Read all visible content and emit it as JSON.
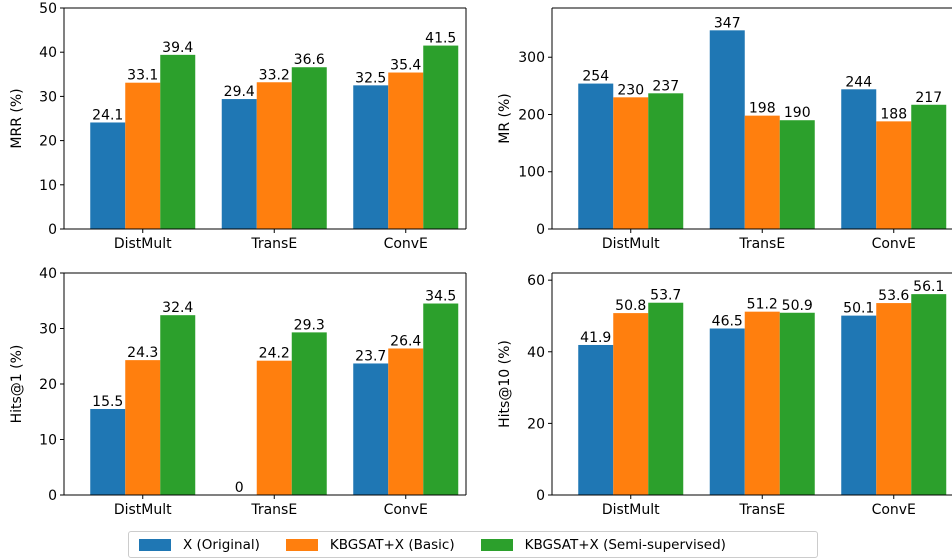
{
  "colors": {
    "original": "#1f77b4",
    "basic": "#ff7f0e",
    "semi": "#2ca02c"
  },
  "legend": {
    "items": [
      {
        "label": "X (Original)",
        "color": "#1f77b4"
      },
      {
        "label": "KBGSAT+X (Basic)",
        "color": "#ff7f0e"
      },
      {
        "label": "KBGSAT+X (Semi-supervised)",
        "color": "#2ca02c"
      }
    ]
  },
  "chart_data": [
    {
      "type": "bar",
      "ylabel": "MRR (%)",
      "categories": [
        "DistMult",
        "TransE",
        "ConvE"
      ],
      "ylim": [
        0,
        50
      ],
      "yticks": [
        0,
        10,
        20,
        30,
        40,
        50
      ],
      "series": [
        {
          "name": "X (Original)",
          "values": [
            24.1,
            29.4,
            32.5
          ],
          "labels": [
            "24.1",
            "29.4",
            "32.5"
          ]
        },
        {
          "name": "KBGSAT+X (Basic)",
          "values": [
            33.1,
            33.2,
            35.4
          ],
          "labels": [
            "33.1",
            "33.2",
            "35.4"
          ]
        },
        {
          "name": "KBGSAT+X (Semi-supervised)",
          "values": [
            39.4,
            36.6,
            41.5
          ],
          "labels": [
            "39.4",
            "36.6",
            "41.5"
          ]
        }
      ]
    },
    {
      "type": "bar",
      "ylabel": "MR (%)",
      "categories": [
        "DistMult",
        "TransE",
        "ConvE"
      ],
      "ylim": [
        0,
        386
      ],
      "yticks": [
        0,
        100,
        200,
        300
      ],
      "series": [
        {
          "name": "X (Original)",
          "values": [
            254,
            347,
            244
          ],
          "labels": [
            "254",
            "347",
            "244"
          ]
        },
        {
          "name": "KBGSAT+X (Basic)",
          "values": [
            230,
            198,
            188
          ],
          "labels": [
            "230",
            "198",
            "188"
          ]
        },
        {
          "name": "KBGSAT+X (Semi-supervised)",
          "values": [
            237,
            190,
            217
          ],
          "labels": [
            "237",
            "190",
            "217"
          ]
        }
      ]
    },
    {
      "type": "bar",
      "ylabel": "Hits@1 (%)",
      "categories": [
        "DistMult",
        "TransE",
        "ConvE"
      ],
      "ylim": [
        0,
        40
      ],
      "yticks": [
        0,
        10,
        20,
        30,
        40
      ],
      "series": [
        {
          "name": "X (Original)",
          "values": [
            15.5,
            0,
            23.7
          ],
          "labels": [
            "15.5",
            "0",
            "23.7"
          ]
        },
        {
          "name": "KBGSAT+X (Basic)",
          "values": [
            24.3,
            24.2,
            26.4
          ],
          "labels": [
            "24.3",
            "24.2",
            "26.4"
          ]
        },
        {
          "name": "KBGSAT+X (Semi-supervised)",
          "values": [
            32.4,
            29.3,
            34.5
          ],
          "labels": [
            "32.4",
            "29.3",
            "34.5"
          ]
        }
      ]
    },
    {
      "type": "bar",
      "ylabel": "Hits@10 (%)",
      "categories": [
        "DistMult",
        "TransE",
        "ConvE"
      ],
      "ylim": [
        0,
        62
      ],
      "yticks": [
        0,
        20,
        40,
        60
      ],
      "series": [
        {
          "name": "X (Original)",
          "values": [
            41.9,
            46.5,
            50.1
          ],
          "labels": [
            "41.9",
            "46.5",
            "50.1"
          ]
        },
        {
          "name": "KBGSAT+X (Basic)",
          "values": [
            50.8,
            51.2,
            53.6
          ],
          "labels": [
            "50.8",
            "51.2",
            "53.6"
          ]
        },
        {
          "name": "KBGSAT+X (Semi-supervised)",
          "values": [
            53.7,
            50.9,
            56.1
          ],
          "labels": [
            "53.7",
            "50.9",
            "56.1"
          ]
        }
      ]
    }
  ]
}
